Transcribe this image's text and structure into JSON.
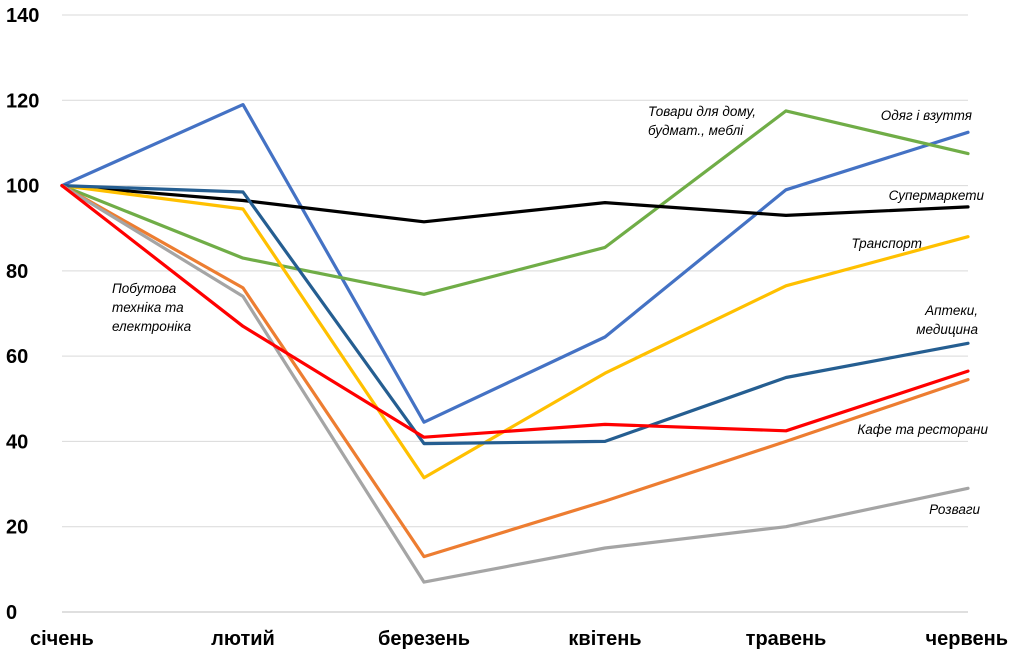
{
  "chart_data": {
    "type": "line",
    "title": "",
    "xlabel": "",
    "ylabel": "",
    "x": [
      "січень",
      "лютий",
      "березень",
      "квітень",
      "травень",
      "червень"
    ],
    "ylim": [
      0,
      140
    ],
    "yticks": [
      0,
      20,
      40,
      60,
      80,
      100,
      120,
      140
    ],
    "grid": true,
    "legend": "none",
    "series": [
      {
        "name": "Одяг і взуття",
        "color": "#4472C4",
        "values": [
          100,
          119,
          44.5,
          64.5,
          99,
          112.5
        ]
      },
      {
        "name": "Товари для дому, будмат., меблі",
        "color": "#70AD47",
        "values": [
          100,
          83,
          74.5,
          85.5,
          117.5,
          107.5
        ]
      },
      {
        "name": "Супермаркети",
        "color": "#000000",
        "values": [
          100,
          96.5,
          91.5,
          96,
          93,
          95
        ]
      },
      {
        "name": "Транспорт",
        "color": "#FFC000",
        "values": [
          100,
          94.5,
          31.5,
          56,
          76.5,
          88
        ]
      },
      {
        "name": "Аптеки, медицина",
        "color": "#255E91",
        "values": [
          100,
          98.5,
          39.5,
          40,
          55,
          63
        ]
      },
      {
        "name": "Кафе та ресторани",
        "color": "#ED7D31",
        "values": [
          100,
          76,
          13,
          26,
          40,
          54.5
        ]
      },
      {
        "name": "Розваги",
        "color": "#A5A5A5",
        "values": [
          100,
          74,
          7,
          15,
          20,
          29
        ]
      },
      {
        "name": "Побутова техніка та електроніка",
        "color": "#FF0000",
        "values": [
          100,
          67,
          41,
          44,
          42.5,
          56.5
        ]
      }
    ],
    "annotations": [
      {
        "series": "Товари для дому, будмат., меблі",
        "lines": [
          "Товари для дому,",
          "будмат., меблі"
        ]
      },
      {
        "series": "Одяг і взуття",
        "lines": [
          "Одяг і взуття"
        ]
      },
      {
        "series": "Супермаркети",
        "lines": [
          "Супермаркети"
        ]
      },
      {
        "series": "Транспорт",
        "lines": [
          "Транспорт"
        ]
      },
      {
        "series": "Аптеки, медицина",
        "lines": [
          "Аптеки,",
          "медицина"
        ]
      },
      {
        "series": "Кафе та ресторани",
        "lines": [
          "Кафе та ресторани"
        ]
      },
      {
        "series": "Розваги",
        "lines": [
          "Розваги"
        ]
      },
      {
        "series": "Побутова техніка та електроніка",
        "lines": [
          "Побутова",
          "техніка та",
          "електроніка"
        ]
      }
    ]
  }
}
